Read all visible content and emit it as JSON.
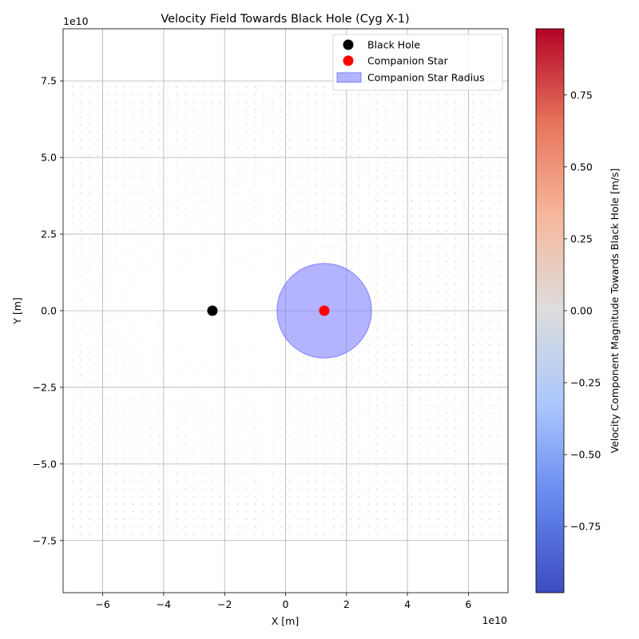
{
  "chart_data": {
    "type": "scatter",
    "title": "Velocity Field Towards Black Hole (Cyg X-1)",
    "xlabel": "X [m]",
    "ylabel": "Y [m]",
    "x_offset_label": "1e10",
    "y_offset_label": "1e10",
    "xlim": [
      -7.3,
      7.3
    ],
    "ylim": [
      -9.2,
      9.2
    ],
    "xticks": [
      -6,
      -4,
      -2,
      0,
      2,
      4,
      6
    ],
    "xtick_labels": [
      "−6",
      "−4",
      "−2",
      "0",
      "2",
      "4",
      "6"
    ],
    "yticks": [
      -7.5,
      -5.0,
      -2.5,
      0.0,
      2.5,
      5.0,
      7.5
    ],
    "ytick_labels": [
      "−7.5",
      "−5.0",
      "−2.5",
      "0.0",
      "2.5",
      "5.0",
      "7.5"
    ],
    "grid": true,
    "legend_position": "top-right",
    "legend": [
      {
        "label": "Black Hole",
        "marker": "circle",
        "color": "#000000"
      },
      {
        "label": "Companion Star",
        "marker": "circle",
        "color": "#ff0000"
      },
      {
        "label": "Companion Star Radius",
        "marker": "patch",
        "color": "#8080ff"
      }
    ],
    "black_hole": {
      "x": -2.4,
      "y": 0.0,
      "color": "#000000"
    },
    "companion_star": {
      "x": 1.27,
      "y": 0.0,
      "color": "#ff0000"
    },
    "companion_radius": {
      "value": 1.55,
      "color": "#8080ff"
    },
    "field_grid": {
      "x_range": [
        -7.0,
        7.0
      ],
      "y_range": [
        -7.3,
        7.3
      ],
      "nx": 50,
      "ny": 60
    },
    "colorbar": {
      "label": "Velocity Component Magnitude Towards Black Hole [m/s]",
      "colormap": "coolwarm",
      "range": [
        -0.98,
        0.98
      ],
      "ticks": [
        -0.75,
        -0.5,
        -0.25,
        0.0,
        0.25,
        0.5,
        0.75
      ],
      "tick_labels": [
        "−0.75",
        "−0.50",
        "−0.25",
        "0.00",
        "0.25",
        "0.50",
        "0.75"
      ],
      "colors": [
        "#3b4cc0",
        "#6688ee",
        "#aac7fd",
        "#dddddd",
        "#f7b89c",
        "#e7745b",
        "#b40426"
      ]
    }
  }
}
